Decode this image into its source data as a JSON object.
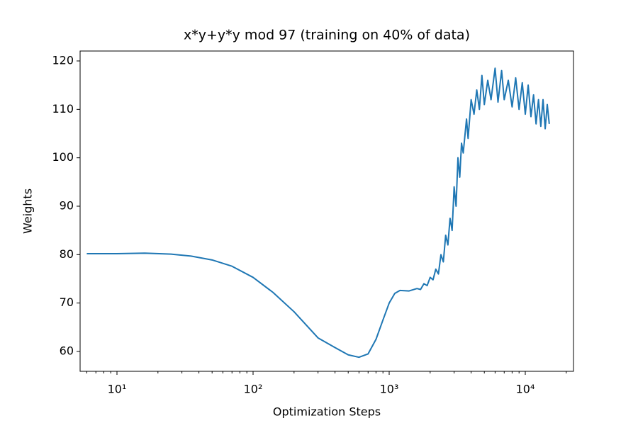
{
  "chart_data": {
    "type": "line",
    "title": "x*y+y*y mod 97 (training on 40% of data)",
    "xlabel": "Optimization Steps",
    "ylabel": "Weights",
    "xscale": "log",
    "x": [
      6,
      10,
      16,
      25,
      35,
      50,
      70,
      100,
      140,
      200,
      300,
      400,
      500,
      600,
      700,
      800,
      900,
      1000,
      1100,
      1200,
      1400,
      1600,
      1700,
      1800,
      1900,
      2000,
      2100,
      2200,
      2300,
      2400,
      2500,
      2600,
      2700,
      2800,
      2900,
      3000,
      3100,
      3200,
      3300,
      3400,
      3500,
      3700,
      3800,
      4000,
      4200,
      4400,
      4600,
      4800,
      5000,
      5300,
      5600,
      6000,
      6300,
      6700,
      7000,
      7500,
      8000,
      8500,
      9000,
      9500,
      10000,
      10500,
      11000,
      11500,
      12000,
      12500,
      13000,
      13500,
      14000,
      14500,
      15000
    ],
    "series": [
      {
        "name": "Weights",
        "color": "#1f77b4",
        "values": [
          80.2,
          80.2,
          80.3,
          80.1,
          79.7,
          78.9,
          77.6,
          75.3,
          72.2,
          68.2,
          62.8,
          60.8,
          59.3,
          58.8,
          59.5,
          62.5,
          66.5,
          70,
          72,
          72.6,
          72.5,
          73,
          72.8,
          74,
          73.6,
          75.3,
          74.8,
          77,
          76,
          80,
          78.5,
          84,
          82,
          87.5,
          85,
          94,
          90,
          100,
          96,
          103,
          101,
          108,
          104,
          112,
          109,
          114,
          110,
          117,
          111,
          116,
          112,
          118.5,
          111.5,
          118,
          112,
          116,
          110.5,
          116.5,
          110,
          115.5,
          109,
          115,
          108.5,
          113,
          107,
          112,
          106.5,
          112,
          106,
          111,
          107
        ]
      }
    ],
    "xlim": [
      5.36,
      22600
    ],
    "ylim": [
      55.9,
      122.05
    ],
    "xticks": [
      {
        "value": 10,
        "label": "10¹"
      },
      {
        "value": 100,
        "label": "10²"
      },
      {
        "value": 1000,
        "label": "10³"
      },
      {
        "value": 10000,
        "label": "10⁴"
      }
    ],
    "yticks": [
      60,
      70,
      80,
      90,
      100,
      110,
      120
    ]
  }
}
